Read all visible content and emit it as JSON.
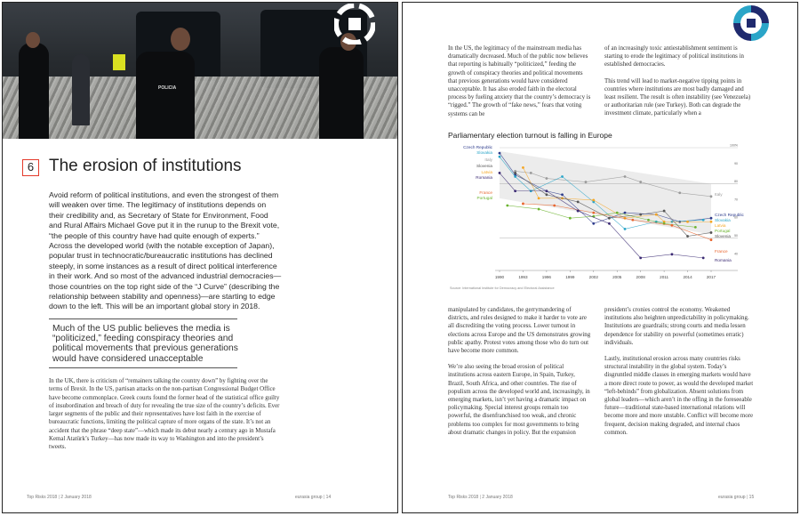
{
  "left_page": {
    "section_number": "6",
    "title": "The erosion of institutions",
    "lead": "Avoid reform of political institutions, and even the strongest of them will weaken over time. The legitimacy of institutions depends on their credibility and, as Secretary of State for Environment, Food and Rural Affairs Michael Gove put it in the runup to the Brexit vote, “the people of this country have had quite enough of experts.” Across the developed world (with the notable exception of Japan), popular trust in technocratic/bureaucratic institutions has declined steeply, in some instances as a result of direct political interference in their work. And so most of the advanced industrial democracies—those countries on the top right side of the “J Curve” (describing the relationship between stability and openness)—are starting to edge down to the left. This will be an important global story in 2018.",
    "pull_quote": "Much of the US public believes the media is “politicized,” feeding conspiracy theories and political movements that previous generations would have considered unacceptable",
    "body": "In the UK, there is criticism of “remainers talking the country down” by fighting over the terms of Brexit. In the US, partisan attacks on the non-partisan Congressional Budget Office have become commonplace. Greek courts found the former head of the statistical office guilty of insubordination and breach of duty for revealing the true size of the country’s deficits. Ever larger segments of the public and their representatives have lost faith in the exercise of bureaucratic functions, limiting the political capture of more organs of the state. It’s not an accident that the phrase “deep state”—which made its debut nearly a century ago in Mustafa Kemal Atatürk’s Turkey—has now made its way to Washington and into the president’s tweets.",
    "photo": {
      "badge_text": "POLICIA"
    },
    "footer_left": "Top Risks 2018",
    "footer_date": "2 January 2018",
    "footer_brand": "eurasia group",
    "page_number": "14"
  },
  "right_page": {
    "col1_top": "In the US, the legitimacy of the mainstream media has dramatically decreased. Much of the public now believes that reporting is habitually “politicized,” feeding the growth of conspiracy theories and political movements that previous generations would have considered unacceptable. It has also eroded faith in the electoral process by fueling anxiety that the country’s democracy is “rigged.” The growth of “fake news,” fears that voting systems can be",
    "col2_top": "of an increasingly toxic antiestablishment sentiment is starting to erode the legitimacy of political institutions in established democracies.",
    "col2_top_b": "This trend will lead to market-negative tipping points in countries where institutions are most badly damaged and least resilient. The result is often instability (see Venezuela) or authoritarian rule (see Turkey). Both can degrade the investment climate, particularly when a",
    "col1_bottom_a": "manipulated by candidates, the gerrymandering of districts, and rules designed to make it harder to vote are all discrediting the voting process. Lower turnout in elections across Europe and the US demonstrates growing public apathy. Protest votes among those who do turn out have become more common.",
    "col1_bottom_b": "We’re also seeing the broad erosion of political institutions across eastern Europe, in Spain, Turkey, Brazil, South Africa, and other countries. The rise of populism across the developed world and, increasingly, in emerging markets, isn’t yet having a dramatic impact on policymaking. Special interest groups remain too powerful, the disenfranchised too weak, and chronic problems too complex for most governments to bring about dramatic changes in policy. But the expansion",
    "col2_bottom_a": "president’s cronies control the economy. Weakened institutions also heighten unpredictability in policymaking. Institutions are guardrails; strong courts and media lessen dependence for stability on powerful (sometimes erratic) individuals.",
    "col2_bottom_b": "Lastly, institutional erosion across many countries risks structural instability in the global system. Today’s disgruntled middle classes in emerging markets would have a more direct route to power, as would the developed market “left-behinds” from globalization. Absent solutions from global leaders—which aren’t in the offing in the foreseeable future—traditional state-based international relations will become more and more unstable. Conflict will become more frequent, decision making degraded, and internal chaos common.",
    "footer_left": "Top Risks 2018",
    "footer_date": "2 January 2018",
    "footer_brand": "eurasia group",
    "page_number": "15"
  },
  "chart_data": {
    "type": "line",
    "title": "Parliamentary election turnout is falling in Europe",
    "source": "Source: International Institute for Democracy and Electoral Assistance",
    "x_ticks": [
      "1990",
      "1993",
      "1996",
      "1999",
      "2002",
      "2005",
      "2008",
      "2011",
      "2014",
      "2017"
    ],
    "y_ticks": [
      "100%",
      "90",
      "80",
      "70",
      "60",
      "50",
      "40"
    ],
    "ylim": [
      35,
      100
    ],
    "xlim": [
      1990,
      2017
    ],
    "left_labels": [
      "Czech Republic",
      "Slovakia",
      "Italy",
      "Slovenia",
      "Latvia",
      "Romania",
      "France",
      "Portugal"
    ],
    "right_labels": [
      "Italy",
      "Czech Republic",
      "Slovakia",
      "Latvia",
      "Portugal",
      "Slovenia",
      "France",
      "Romania"
    ],
    "series": [
      {
        "name": "Italy",
        "color": "#9a9a9a",
        "x": [
          1992,
          1994,
          1996,
          2001,
          2006,
          2008,
          2013,
          2018
        ],
        "y": [
          87,
          86,
          83,
          81,
          84,
          81,
          75,
          73
        ]
      },
      {
        "name": "Czech Republic",
        "color": "#2e3c8c",
        "x": [
          1990,
          1992,
          1996,
          1998,
          2002,
          2006,
          2010,
          2013,
          2017
        ],
        "y": [
          97,
          85,
          76,
          74,
          58,
          64,
          63,
          59,
          61
        ]
      },
      {
        "name": "Slovakia",
        "color": "#2aa5c8",
        "x": [
          1990,
          1992,
          1994,
          1998,
          2002,
          2006,
          2010,
          2012,
          2016
        ],
        "y": [
          95,
          84,
          76,
          84,
          70,
          55,
          59,
          59,
          60
        ]
      },
      {
        "name": "Latvia",
        "color": "#f5a623",
        "x": [
          1993,
          1995,
          1998,
          2002,
          2006,
          2010,
          2011,
          2014,
          2017
        ],
        "y": [
          89,
          72,
          72,
          71,
          61,
          63,
          59,
          59,
          59
        ]
      },
      {
        "name": "Portugal",
        "color": "#6bb32e",
        "x": [
          1991,
          1995,
          1999,
          2002,
          2005,
          2009,
          2011,
          2015
        ],
        "y": [
          68,
          66,
          61,
          62,
          64,
          60,
          58,
          56
        ]
      },
      {
        "name": "Slovenia",
        "color": "#555555",
        "x": [
          1992,
          1996,
          2000,
          2004,
          2008,
          2011,
          2014,
          2017
        ],
        "y": [
          86,
          74,
          70,
          61,
          63,
          65,
          51,
          53
        ]
      },
      {
        "name": "France",
        "color": "#e8652e",
        "x": [
          1993,
          1997,
          2002,
          2007,
          2012,
          2017
        ],
        "y": [
          69,
          68,
          64,
          60,
          57,
          49
        ]
      },
      {
        "name": "Romania",
        "color": "#3b2a73",
        "x": [
          1990,
          1992,
          1996,
          2000,
          2004,
          2008,
          2012,
          2016
        ],
        "y": [
          86,
          76,
          76,
          65,
          58,
          39,
          41,
          39
        ]
      }
    ]
  }
}
